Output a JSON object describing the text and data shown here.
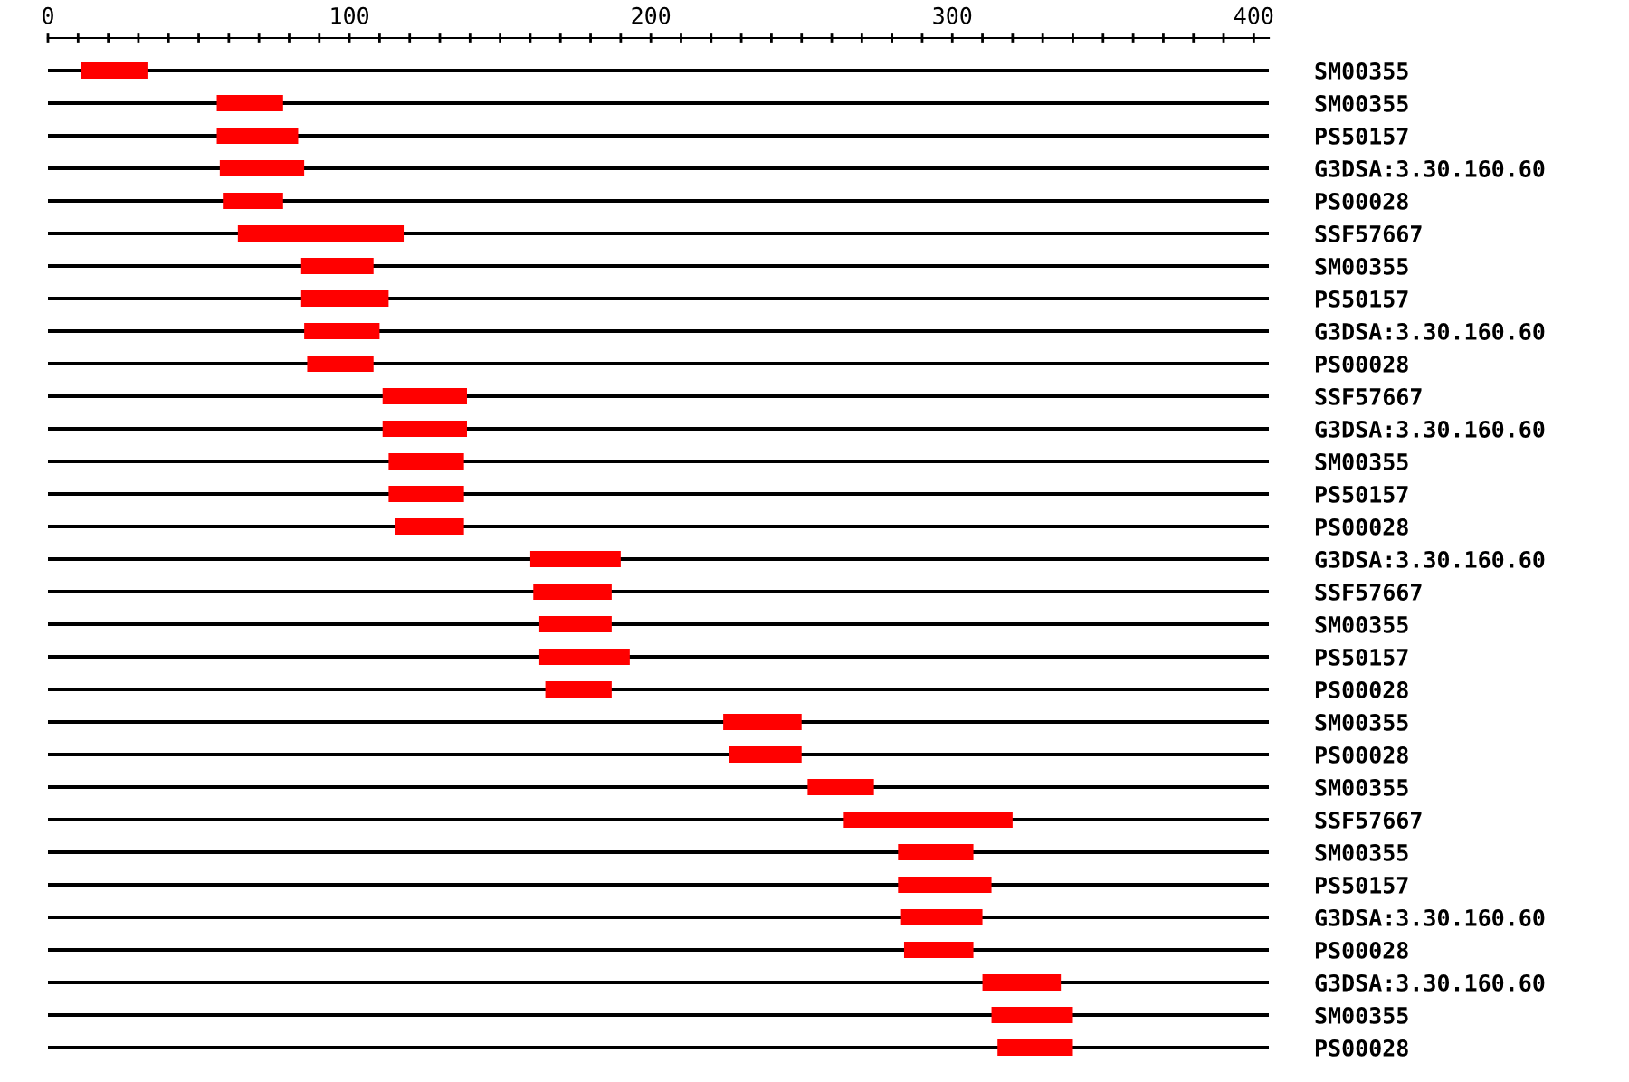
{
  "chart_data": {
    "type": "bar",
    "orientation": "horizontal",
    "categories": [
      "SM00355",
      "SM00355",
      "PS50157",
      "G3DSA:3.30.160.60",
      "PS00028",
      "SSF57667",
      "SM00355",
      "PS50157",
      "G3DSA:3.30.160.60",
      "PS00028",
      "SSF57667",
      "G3DSA:3.30.160.60",
      "SM00355",
      "PS50157",
      "PS00028",
      "G3DSA:3.30.160.60",
      "SSF57667",
      "SM00355",
      "PS50157",
      "PS00028",
      "SM00355",
      "PS00028",
      "SM00355",
      "SSF57667",
      "SM00355",
      "PS50157",
      "G3DSA:3.30.160.60",
      "PS00028",
      "G3DSA:3.30.160.60",
      "SM00355",
      "PS00028"
    ],
    "base": [
      11,
      56,
      56,
      57,
      58,
      63,
      84,
      84,
      85,
      86,
      111,
      111,
      113,
      113,
      115,
      160,
      161,
      163,
      163,
      165,
      224,
      226,
      252,
      264,
      282,
      282,
      283,
      284,
      310,
      313,
      315
    ],
    "values": [
      22,
      22,
      27,
      28,
      20,
      55,
      24,
      29,
      25,
      22,
      28,
      28,
      25,
      25,
      23,
      30,
      26,
      24,
      30,
      22,
      26,
      24,
      22,
      56,
      25,
      31,
      27,
      23,
      26,
      27,
      25
    ],
    "color": "#ff0000",
    "xlim": [
      0,
      405
    ],
    "xticks": [
      0,
      {
        "value": 10,
        "label": null
      },
      {
        "value": 20,
        "label": null
      },
      {
        "value": 30,
        "label": null
      },
      {
        "value": 40,
        "label": null
      },
      {
        "value": 50,
        "label": null
      },
      {
        "value": 60,
        "label": null
      },
      {
        "value": 70,
        "label": null
      },
      {
        "value": 80,
        "label": null
      },
      {
        "value": 90,
        "label": null
      },
      100,
      {
        "value": 110,
        "label": null
      },
      {
        "value": 120,
        "label": null
      },
      {
        "value": 130,
        "label": null
      },
      {
        "value": 140,
        "label": null
      },
      {
        "value": 150,
        "label": null
      },
      {
        "value": 160,
        "label": null
      },
      {
        "value": 170,
        "label": null
      },
      {
        "value": 180,
        "label": null
      },
      {
        "value": 190,
        "label": null
      },
      200,
      {
        "value": 210,
        "label": null
      },
      {
        "value": 220,
        "label": null
      },
      {
        "value": 230,
        "label": null
      },
      {
        "value": 240,
        "label": null
      },
      {
        "value": 250,
        "label": null
      },
      {
        "value": 260,
        "label": null
      },
      {
        "value": 270,
        "label": null
      },
      {
        "value": 280,
        "label": null
      },
      {
        "value": 290,
        "label": null
      },
      300,
      {
        "value": 310,
        "label": null
      },
      {
        "value": 320,
        "label": null
      },
      {
        "value": 330,
        "label": null
      },
      {
        "value": 340,
        "label": null
      },
      {
        "value": 350,
        "label": null
      },
      {
        "value": 360,
        "label": null
      },
      {
        "value": 370,
        "label": null
      },
      {
        "value": 380,
        "label": null
      },
      {
        "value": 390,
        "label": null
      },
      400
    ],
    "grid": "y"
  }
}
